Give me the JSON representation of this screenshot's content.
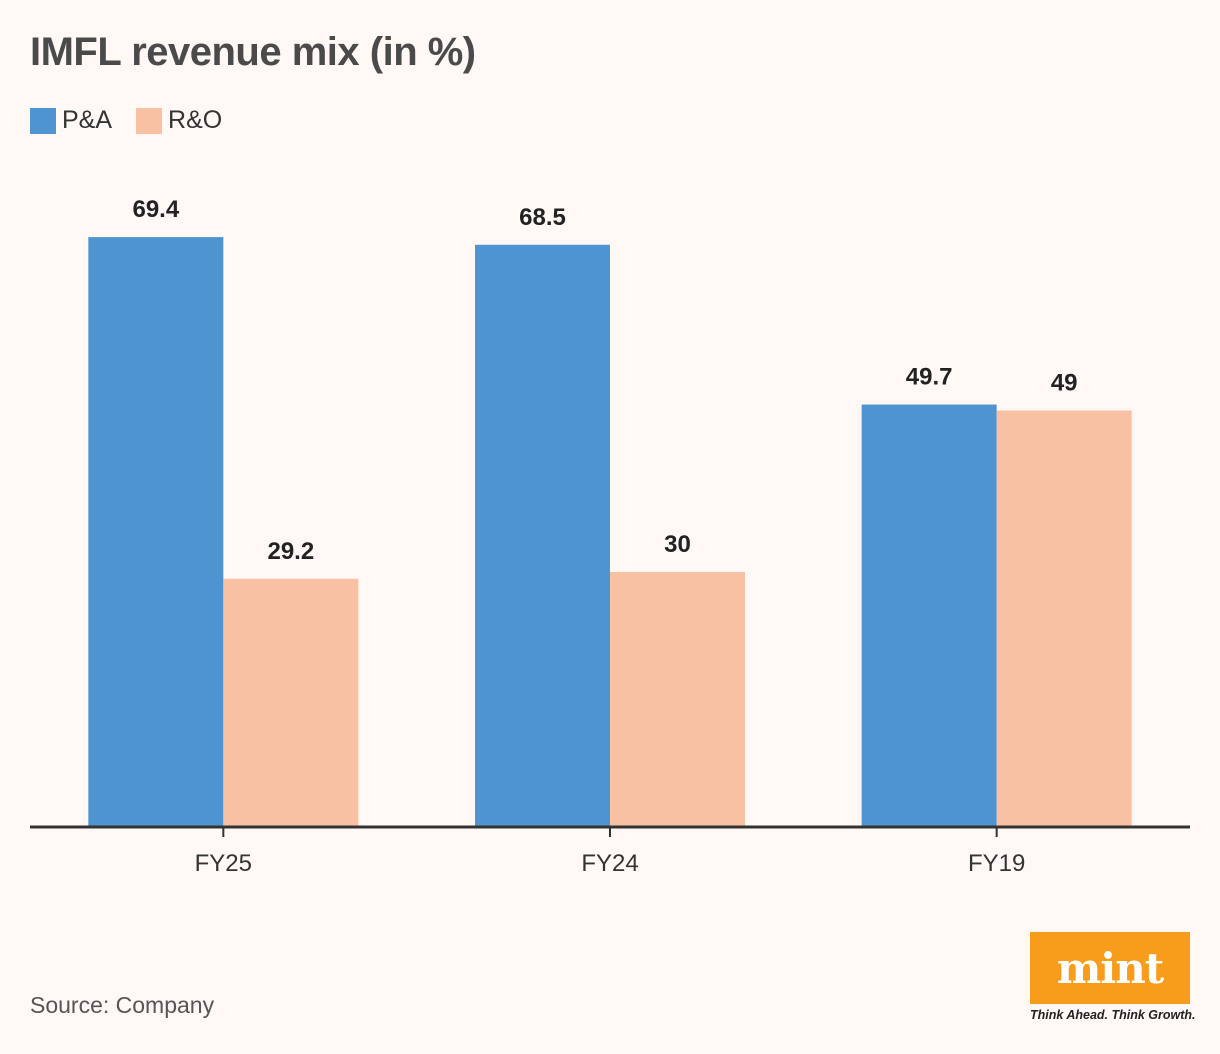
{
  "title": "IMFL revenue mix (in %)",
  "source": "Source: Company",
  "logo": {
    "text": "mint",
    "tagline": "Think Ahead. Think Growth.",
    "color": "#f89c1c"
  },
  "chart_data": {
    "type": "bar",
    "title": "IMFL revenue mix (in %)",
    "categories": [
      "FY25",
      "FY24",
      "FY19"
    ],
    "series": [
      {
        "name": "P&A",
        "values": [
          69.4,
          68.5,
          49.7
        ],
        "color": "#4e94d0"
      },
      {
        "name": "R&O",
        "values": [
          29.2,
          30,
          49
        ],
        "color": "#f9c1a3"
      }
    ],
    "ylim": [
      0,
      100
    ],
    "grid": false,
    "legend_position": "top-left",
    "data_labels": true,
    "xlabel": "",
    "ylabel": ""
  }
}
